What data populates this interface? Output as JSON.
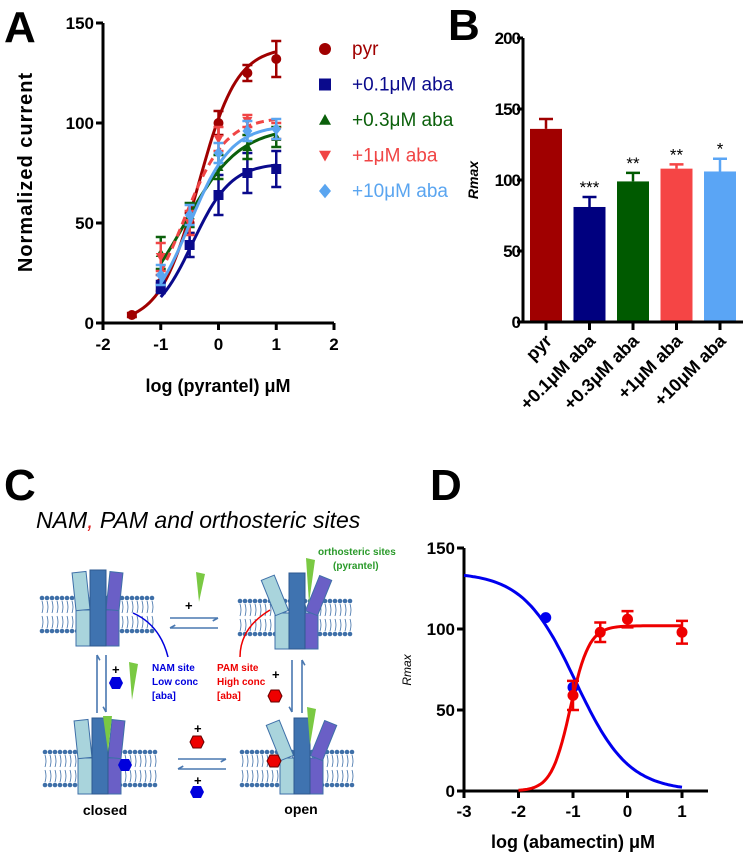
{
  "panel_labels": {
    "a": "A",
    "b": "B",
    "c": "C",
    "d": "D"
  },
  "chart_data": [
    {
      "panel": "A",
      "type": "line",
      "title": "",
      "xlabel": "log (pyrantel) μM",
      "ylabel": "Normalized current",
      "xlim": [
        -2,
        2
      ],
      "ylim": [
        0,
        150
      ],
      "xticks": [
        "-2",
        "-1",
        "0",
        "1",
        "2"
      ],
      "yticks": [
        "0",
        "50",
        "100",
        "150"
      ],
      "grid": false,
      "legend": "right",
      "series": [
        {
          "name": "pyr",
          "color": "#a00000",
          "marker": "circle",
          "line": "solid",
          "x": [
            -1.5,
            -1,
            -0.5,
            0,
            0.5,
            1
          ],
          "y": [
            4,
            20,
            50,
            100,
            125,
            132
          ],
          "err": [
            1,
            4,
            5,
            6,
            4,
            9
          ]
        },
        {
          "name": "+0.1μM aba",
          "color": "#0a0a8c",
          "marker": "square",
          "line": "solid",
          "x": [
            -1,
            -0.5,
            0,
            0.5,
            1
          ],
          "y": [
            18,
            39,
            64,
            75,
            77
          ],
          "err": [
            3,
            6,
            10,
            10,
            9
          ]
        },
        {
          "name": "+0.3μM aba",
          "color": "#0b600b",
          "marker": "triangle-up",
          "line": "solid",
          "x": [
            -1,
            -0.5,
            0,
            0.5,
            1
          ],
          "y": [
            35,
            54,
            78,
            88,
            93
          ],
          "err": [
            8,
            6,
            6,
            6,
            5
          ]
        },
        {
          "name": "+1μM aba",
          "color": "#f04545",
          "marker": "triangle-down",
          "line": "dashed",
          "x": [
            -1,
            -0.5,
            0,
            0.5,
            1
          ],
          "y": [
            33,
            50,
            92,
            101,
            96
          ],
          "err": [
            7,
            6,
            6,
            3,
            4
          ]
        },
        {
          "name": "+10μM aba",
          "color": "#5aa5f0",
          "marker": "diamond",
          "line": "solid",
          "x": [
            -1,
            -0.5,
            0,
            0.5,
            1
          ],
          "y": [
            24,
            54,
            85,
            96,
            97
          ],
          "err": [
            5,
            5,
            5,
            5,
            5
          ]
        }
      ]
    },
    {
      "panel": "B",
      "type": "bar",
      "title": "",
      "xlabel": "",
      "ylabel": "Rmax",
      "ylim": [
        0,
        200
      ],
      "yticks": [
        "0",
        "50",
        "100",
        "150",
        "200"
      ],
      "grid": false,
      "categories": [
        "pyr",
        "+0.1μM aba",
        "+0.3μM aba",
        "+1μM aba",
        "+10μM aba"
      ],
      "values": [
        136,
        81,
        99,
        108,
        106
      ],
      "err": [
        7,
        7,
        6,
        3,
        9
      ],
      "significance": [
        "",
        "***",
        "**",
        "**",
        "*"
      ],
      "colors": [
        "#a00000",
        "#00007f",
        "#005a00",
        "#f54545",
        "#5aa5f5"
      ]
    },
    {
      "panel": "D",
      "type": "line",
      "title": "",
      "xlabel": "log (abamectin) μM",
      "ylabel": "Rmax",
      "xlim": [
        -3,
        1.5
      ],
      "ylim": [
        0,
        150
      ],
      "xticks": [
        "-3",
        "-2",
        "-1",
        "0",
        "1"
      ],
      "yticks": [
        "0",
        "50",
        "100",
        "150"
      ],
      "grid": false,
      "series": [
        {
          "color": "#0000ee",
          "marker": "circle",
          "x": [
            -1.5,
            -1
          ],
          "y": [
            107,
            64
          ],
          "err": [
            0,
            0
          ]
        },
        {
          "color": "#ee0000",
          "marker": "circle",
          "x": [
            -1,
            -0.5,
            0,
            1
          ],
          "y": [
            59,
            98,
            106,
            98
          ],
          "err": [
            9,
            6,
            5,
            7
          ]
        }
      ]
    }
  ],
  "panel_c": {
    "title_part1": "NAM",
    "title_comma": ",",
    "title_part2": " PAM and orthosteric sites",
    "orthosteric_label": "orthosteric  sites",
    "orthosteric_sub": "(pyrantel)",
    "nam": [
      "NAM site",
      "Low conc",
      "[aba]"
    ],
    "pam": [
      "PAM site",
      "High conc",
      "[aba]"
    ],
    "plus": "+",
    "closed": "closed",
    "open": "open",
    "colors": {
      "nam": "#0000dd",
      "pam": "#ee0000",
      "agonist": "#7ac943",
      "channel_light": "#a9d4dc",
      "channel_mid": "#3f73b0",
      "channel_dark": "#6a5fc6",
      "membrane": "#3e6fa8"
    }
  }
}
